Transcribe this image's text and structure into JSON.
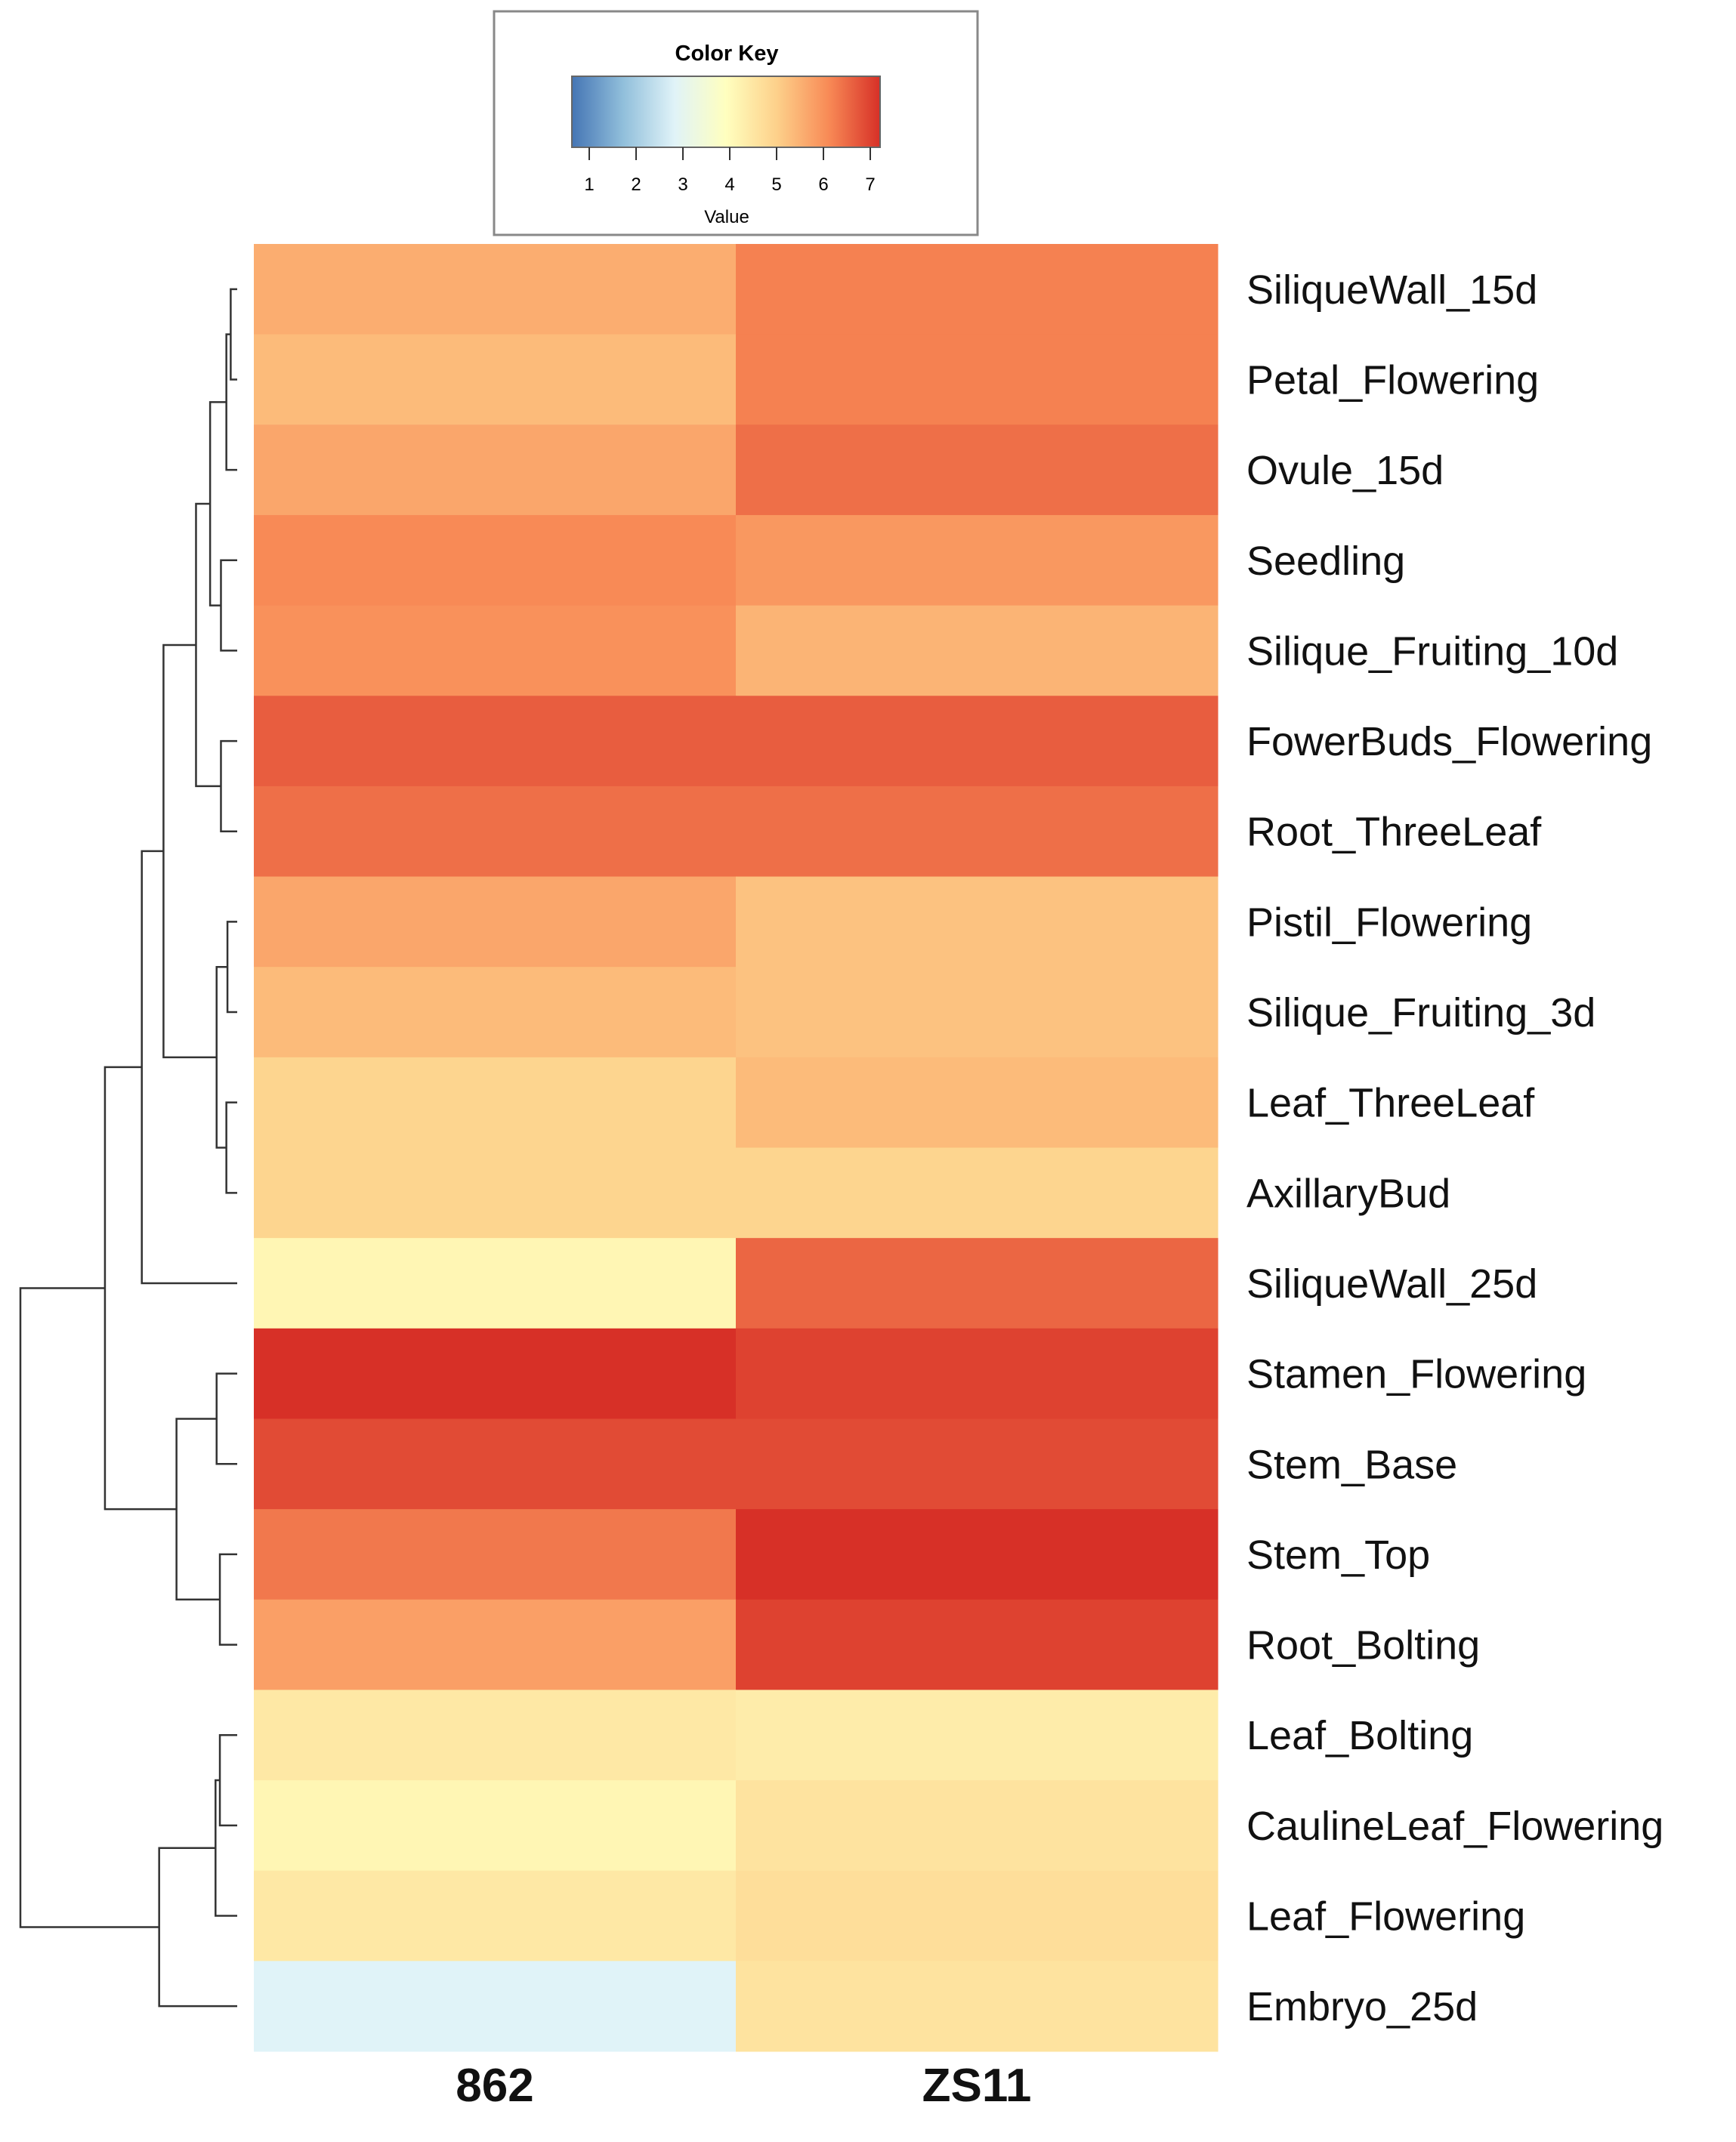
{
  "chart_data": {
    "type": "heatmap",
    "title": "",
    "columns": [
      "862",
      "ZS11"
    ],
    "rows": [
      "SiliqueWall_15d",
      "Petal_Flowering",
      "Ovule_15d",
      "Seedling",
      "Silique_Fruiting_10d",
      "FowerBuds_Flowering",
      "Root_ThreeLeaf",
      "Pistil_Flowering",
      "Silique_Fruiting_3d",
      "Leaf_ThreeLeaf",
      "AxillaryBud",
      "SiliqueWall_25d",
      "Stamen_Flowering",
      "Stem_Base",
      "Stem_Top",
      "Root_Bolting",
      "Leaf_Bolting",
      "CaulineLeaf_Flowering",
      "Leaf_Flowering",
      "Embryo_25d"
    ],
    "values": [
      [
        5.5,
        6.1
      ],
      [
        5.3,
        6.1
      ],
      [
        5.6,
        6.3
      ],
      [
        6.0,
        5.8
      ],
      [
        5.9,
        5.4
      ],
      [
        6.5,
        6.5
      ],
      [
        6.3,
        6.3
      ],
      [
        5.6,
        5.2
      ],
      [
        5.3,
        5.2
      ],
      [
        4.9,
        5.3
      ],
      [
        4.9,
        4.9
      ],
      [
        4.2,
        6.4
      ],
      [
        7.0,
        6.8
      ],
      [
        6.7,
        6.7
      ],
      [
        6.2,
        7.0
      ],
      [
        5.7,
        6.8
      ],
      [
        4.5,
        4.4
      ],
      [
        4.2,
        4.6
      ],
      [
        4.5,
        4.7
      ],
      [
        3.0,
        4.6
      ]
    ],
    "color_key": {
      "title": "Color Key",
      "xlabel": "Value",
      "ticks": [
        "1",
        "2",
        "3",
        "4",
        "5",
        "6",
        "7"
      ],
      "range": [
        1,
        7
      ],
      "stops": [
        {
          "v": 1,
          "c": "#4575b4"
        },
        {
          "v": 2,
          "c": "#91bfdb"
        },
        {
          "v": 3,
          "c": "#e0f3f8"
        },
        {
          "v": 4,
          "c": "#ffffbf"
        },
        {
          "v": 5,
          "c": "#fdd08a"
        },
        {
          "v": 6,
          "c": "#f88a56"
        },
        {
          "v": 7,
          "c": "#d73027"
        }
      ]
    },
    "row_dendrogram": {
      "merges": [
        {
          "a": 0,
          "b": 1,
          "h": 0.03
        },
        {
          "a": "m0",
          "b": 2,
          "h": 0.05
        },
        {
          "a": 3,
          "b": 4,
          "h": 0.075
        },
        {
          "a": "m1",
          "b": "m2",
          "h": 0.125
        },
        {
          "a": 5,
          "b": 6,
          "h": 0.075
        },
        {
          "a": "m3",
          "b": "m4",
          "h": 0.19
        },
        {
          "a": 7,
          "b": 8,
          "h": 0.045
        },
        {
          "a": 9,
          "b": 10,
          "h": 0.05
        },
        {
          "a": "m6",
          "b": "m7",
          "h": 0.095
        },
        {
          "a": "m5",
          "b": "m8",
          "h": 0.34
        },
        {
          "a": "m9",
          "b": 11,
          "h": 0.44
        },
        {
          "a": 12,
          "b": 13,
          "h": 0.095
        },
        {
          "a": 14,
          "b": 15,
          "h": 0.08
        },
        {
          "a": "m11",
          "b": "m12",
          "h": 0.28
        },
        {
          "a": "m10",
          "b": "m13",
          "h": 0.61
        },
        {
          "a": 16,
          "b": 17,
          "h": 0.08
        },
        {
          "a": "m15",
          "b": 18,
          "h": 0.1
        },
        {
          "a": "m16",
          "b": 19,
          "h": 0.36
        },
        {
          "a": "m14",
          "b": "m17",
          "h": 1.0
        }
      ]
    }
  }
}
